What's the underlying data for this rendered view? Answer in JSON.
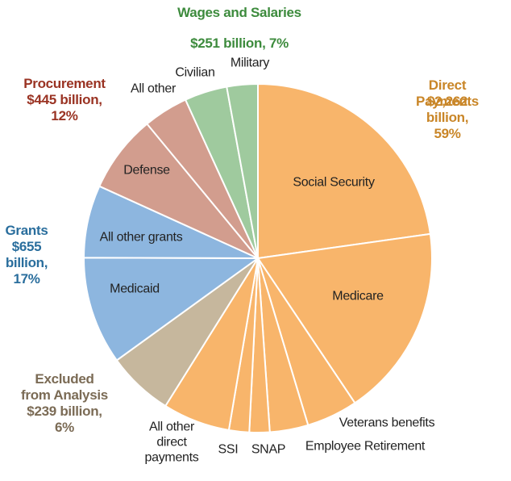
{
  "chart_data": {
    "type": "pie",
    "categories": [
      "Social Security",
      "Medicare",
      "Veterans benefits",
      "Employee Retirement",
      "SNAP",
      "SSI",
      "All other\ndirect\npayments",
      null,
      "Medicaid",
      "All other grants",
      "Defense",
      "All other",
      "Civilian",
      "Military"
    ],
    "values": [
      23,
      18,
      4.8,
      3.6,
      1.9,
      1.9,
      6.3,
      6.2,
      10.1,
      6.8,
      7.3,
      4.2,
      4.0,
      2.9
    ],
    "colors": [
      "#f8b56b",
      "#f8b56b",
      "#f8b56b",
      "#f8b56b",
      "#f8b56b",
      "#f8b56b",
      "#f8b56b",
      "#c6b79d",
      "#8db6df",
      "#8db6df",
      "#d29d8e",
      "#d29d8e",
      "#9fca9e",
      "#9fca9e"
    ],
    "groups": [
      {
        "name": "Wages and Salaries",
        "label": "$251 billion, 7%",
        "color": "#3d8b3d"
      },
      {
        "name": "Direct Payments",
        "label": "$2,262 billion,\n59%",
        "color": "#c98628"
      },
      {
        "name": "Procurement",
        "label": "$445 billion,\n12%",
        "color": "#9a3323"
      },
      {
        "name": "Grants",
        "label": "$655\nbillion,\n17%",
        "color": "#2a6e9d"
      },
      {
        "name": "Excluded\nfrom Analysis",
        "label": "$239 billion,\n6%",
        "color": "#7b6b55"
      }
    ]
  }
}
